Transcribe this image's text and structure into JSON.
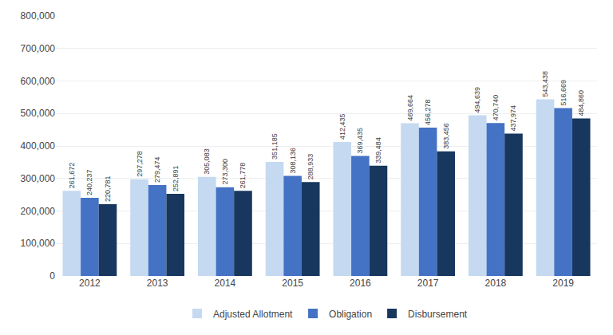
{
  "chart_data": {
    "type": "bar",
    "categories": [
      "2012",
      "2013",
      "2014",
      "2015",
      "2016",
      "2017",
      "2018",
      "2019"
    ],
    "series": [
      {
        "name": "Adjusted Allotment",
        "color": "#c5d9f1",
        "values": [
          261672,
          297278,
          305083,
          351185,
          412435,
          469664,
          494639,
          543438
        ],
        "value_labels": [
          "261,672",
          "297,278",
          "305,083",
          "351,185",
          "412,435",
          "469,664",
          "494,639",
          "543,438"
        ]
      },
      {
        "name": "Obligation",
        "color": "#4472c4",
        "values": [
          240237,
          279474,
          273300,
          308136,
          369435,
          456278,
          470740,
          516669
        ],
        "value_labels": [
          "240,237",
          "279,474",
          "273,300",
          "308,136",
          "369,435",
          "456,278",
          "470,740",
          "516,669"
        ]
      },
      {
        "name": "Disbursement",
        "color": "#17375e",
        "values": [
          220781,
          252891,
          261778,
          288933,
          339484,
          383456,
          437974,
          484860
        ],
        "value_labels": [
          "220,781",
          "252,891",
          "261,778",
          "288,933",
          "339,484",
          "383,456",
          "437,974",
          "484,860"
        ]
      }
    ],
    "ylim": [
      0,
      800000
    ],
    "yticks": [
      0,
      {
        "value": 100000,
        "label": "100,000"
      },
      {
        "value": 200000,
        "label": "200,000"
      },
      {
        "value": 300000,
        "label": "300,000"
      },
      {
        "value": 400000,
        "label": "400,000"
      },
      {
        "value": 500000,
        "label": "500,000"
      },
      {
        "value": 600000,
        "label": "600,000"
      },
      {
        "value": 700000,
        "label": "700,000"
      },
      {
        "value": 800000,
        "label": "800,000"
      }
    ],
    "grid": true,
    "legend": "bottom",
    "data_labels": true
  }
}
